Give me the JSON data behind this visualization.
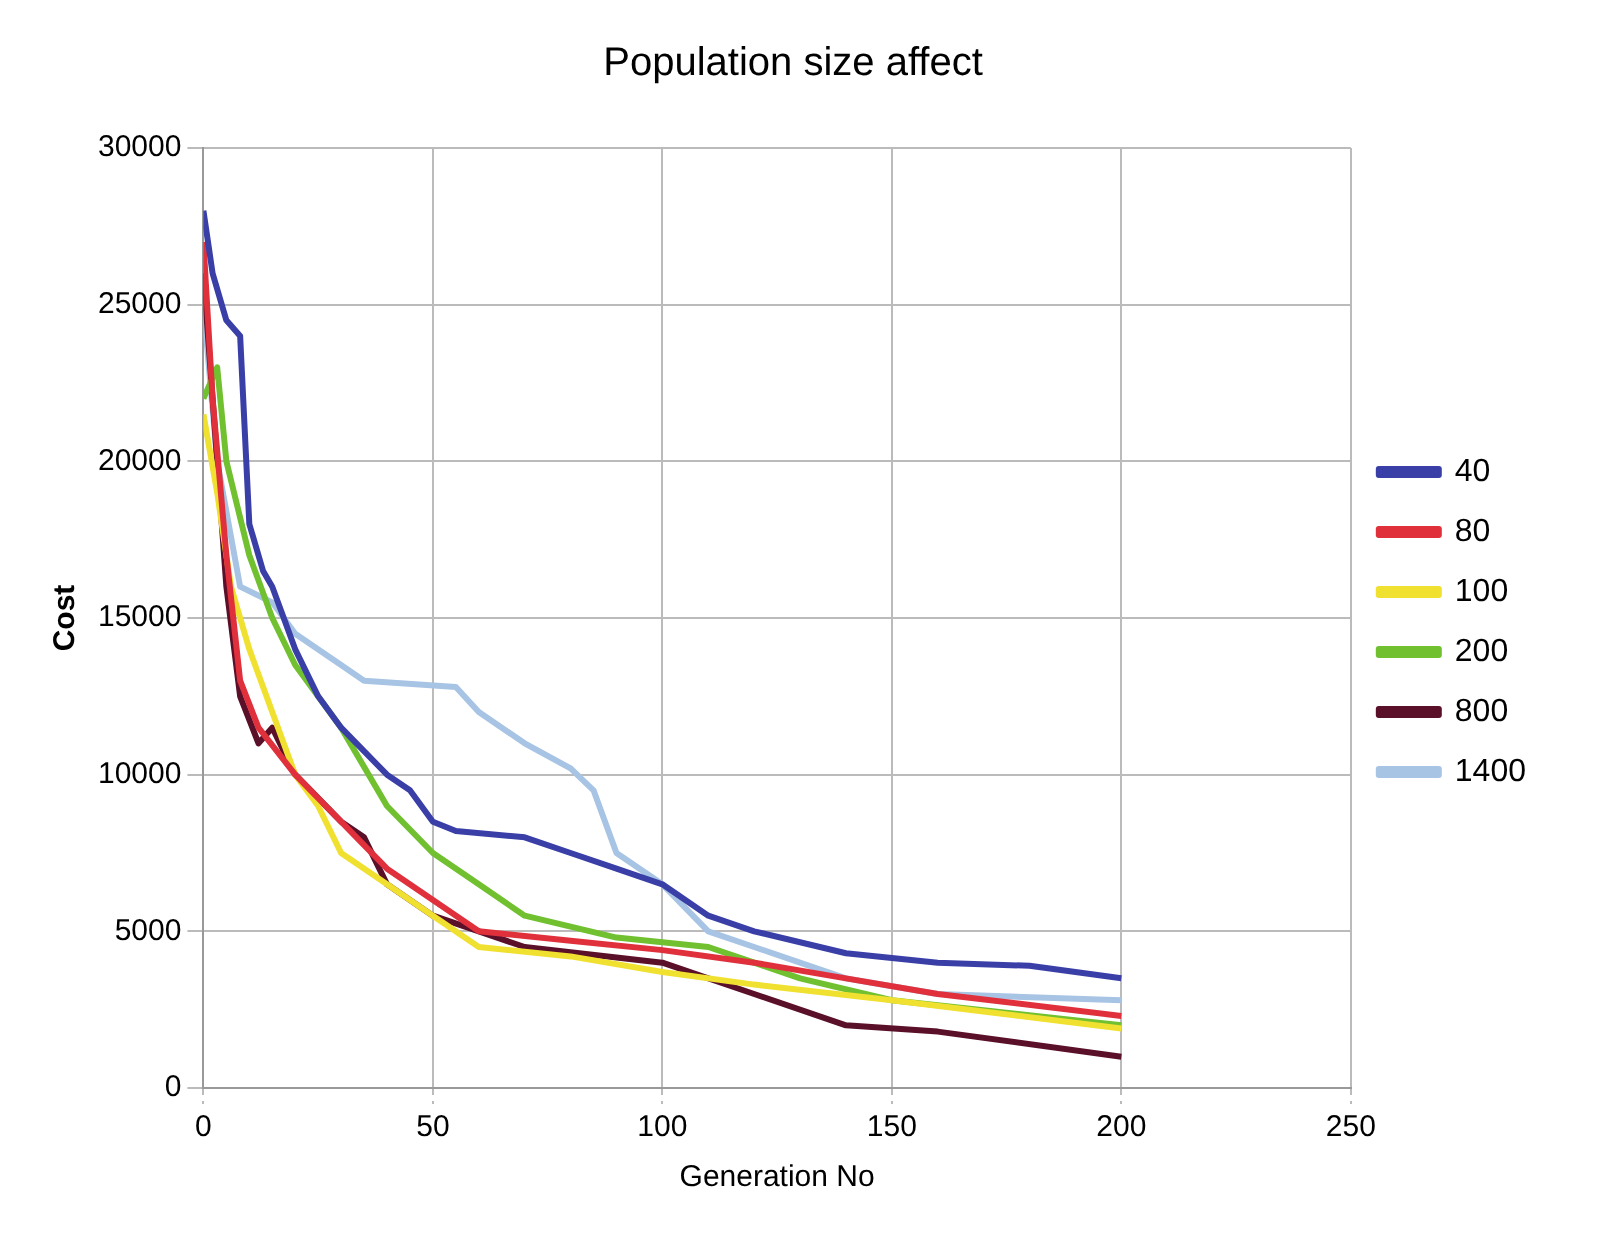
{
  "chart_data": {
    "type": "line",
    "title": "Population size affect",
    "xlabel": "Generation No",
    "ylabel": "Cost",
    "xlim": [
      0,
      250
    ],
    "xticks": [
      0,
      50,
      100,
      150,
      200,
      250
    ],
    "ylim": [
      0,
      30000
    ],
    "yticks": [
      0,
      5000,
      10000,
      15000,
      20000,
      25000,
      30000
    ],
    "grid": true,
    "legend": "right",
    "marker": "none",
    "series": [
      {
        "name": "40",
        "color": "#3a3fa8",
        "x": [
          0,
          2,
          5,
          8,
          10,
          13,
          15,
          20,
          25,
          30,
          40,
          45,
          50,
          55,
          70,
          80,
          90,
          100,
          110,
          120,
          140,
          160,
          180,
          200
        ],
        "values": [
          28000,
          26000,
          24500,
          24000,
          18000,
          16500,
          16000,
          14000,
          12500,
          11500,
          10000,
          9500,
          8500,
          8200,
          8000,
          7500,
          7000,
          6500,
          5500,
          5000,
          4300,
          4000,
          3900,
          3500
        ]
      },
      {
        "name": "80",
        "color": "#e0303c",
        "x": [
          0,
          2,
          5,
          8,
          12,
          20,
          30,
          40,
          50,
          60,
          80,
          100,
          120,
          140,
          160,
          200
        ],
        "values": [
          27000,
          22000,
          17000,
          13000,
          11500,
          10000,
          8500,
          7000,
          6000,
          5000,
          4700,
          4400,
          4000,
          3500,
          3000,
          2300
        ]
      },
      {
        "name": "100",
        "color": "#f0e030",
        "x": [
          0,
          3,
          6,
          10,
          15,
          20,
          25,
          30,
          40,
          50,
          60,
          80,
          100,
          120,
          150,
          200
        ],
        "values": [
          21500,
          19000,
          16000,
          14000,
          12000,
          10000,
          9000,
          7500,
          6500,
          5500,
          4500,
          4200,
          3700,
          3300,
          2800,
          1900
        ]
      },
      {
        "name": "200",
        "color": "#70c030",
        "x": [
          0,
          3,
          5,
          10,
          15,
          20,
          30,
          40,
          50,
          60,
          70,
          90,
          110,
          130,
          150,
          200
        ],
        "values": [
          22000,
          23000,
          20000,
          17000,
          15000,
          13500,
          11500,
          9000,
          7500,
          6500,
          5500,
          4800,
          4500,
          3500,
          2800,
          2000
        ]
      },
      {
        "name": "800",
        "color": "#5a1028",
        "x": [
          0,
          3,
          5,
          8,
          12,
          15,
          20,
          30,
          35,
          40,
          50,
          70,
          100,
          120,
          140,
          160,
          200
        ],
        "values": [
          26000,
          20000,
          16000,
          12500,
          11000,
          11500,
          10000,
          8500,
          8000,
          6500,
          5500,
          4500,
          4000,
          3000,
          2000,
          1800,
          1000
        ]
      },
      {
        "name": "1400",
        "color": "#a8c4e4",
        "x": [
          0,
          3,
          8,
          15,
          20,
          30,
          35,
          55,
          60,
          70,
          80,
          85,
          90,
          100,
          110,
          120,
          140,
          160,
          200
        ],
        "values": [
          25000,
          20000,
          16000,
          15500,
          14500,
          13500,
          13000,
          12800,
          12000,
          11000,
          10200,
          9500,
          7500,
          6500,
          5000,
          4500,
          3500,
          3000,
          2800
        ]
      }
    ]
  }
}
